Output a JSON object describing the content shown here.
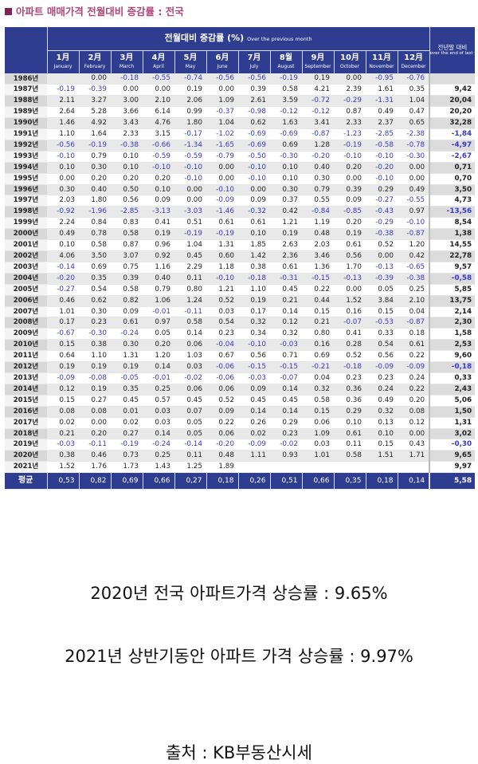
{
  "title": "아파트 매매가격 전월대비 증감률 : 전국",
  "header": {
    "main": "전월대비 증감률 (%)",
    "main_sub": "Over the previous month",
    "last_col_kr": "전년말 대비",
    "last_col_en": "over the end of last year",
    "months": [
      {
        "kr": "1月",
        "en": "January"
      },
      {
        "kr": "2月",
        "en": "February"
      },
      {
        "kr": "3月",
        "en": "March"
      },
      {
        "kr": "4月",
        "en": "April"
      },
      {
        "kr": "5月",
        "en": "May"
      },
      {
        "kr": "6月",
        "en": "June"
      },
      {
        "kr": "7月",
        "en": "July"
      },
      {
        "kr": "8월",
        "en": "August"
      },
      {
        "kr": "9月",
        "en": "September"
      },
      {
        "kr": "10月",
        "en": "October"
      },
      {
        "kr": "11月",
        "en": "November"
      },
      {
        "kr": "12月",
        "en": "December"
      }
    ]
  },
  "rows": [
    {
      "year": "1986년",
      "vals": [
        "",
        "0.00",
        "-0.18",
        "-0.55",
        "-0.74",
        "-0.56",
        "-0.56",
        "-0.19",
        "0.19",
        "0.00",
        "-0.95",
        "-0.76"
      ],
      "last": ""
    },
    {
      "year": "1987년",
      "vals": [
        "-0.19",
        "-0.39",
        "0.00",
        "0.00",
        "0.19",
        "0.00",
        "0.39",
        "0.58",
        "4.21",
        "2.39",
        "1.61",
        "0.35"
      ],
      "last": "9,42"
    },
    {
      "year": "1988년",
      "vals": [
        "2.11",
        "3.27",
        "3.00",
        "2.10",
        "2.06",
        "1.09",
        "2.61",
        "3.59",
        "-0.72",
        "-0.29",
        "-1.31",
        "1.04"
      ],
      "last": "20,04"
    },
    {
      "year": "1989년",
      "vals": [
        "2.64",
        "5.28",
        "3.66",
        "6.14",
        "0.99",
        "-0.37",
        "-0.98",
        "-0.12",
        "-0.12",
        "0.87",
        "0.49",
        "0.47"
      ],
      "last": "20,20"
    },
    {
      "year": "1990년",
      "vals": [
        "1.46",
        "4.92",
        "3.43",
        "4.76",
        "1.80",
        "1.04",
        "0.62",
        "1.63",
        "3.41",
        "2.33",
        "2.37",
        "0.65"
      ],
      "last": "32,28"
    },
    {
      "year": "1991년",
      "vals": [
        "1.10",
        "1.64",
        "2.33",
        "3.15",
        "-0.17",
        "-1.02",
        "-0.69",
        "-0.69",
        "-0.87",
        "-1.23",
        "-2.85",
        "-2.38"
      ],
      "last": "-1,84"
    },
    {
      "year": "1992년",
      "vals": [
        "-0.56",
        "-0.19",
        "-0.38",
        "-0.66",
        "-1.34",
        "-1.65",
        "-0.69",
        "0.69",
        "1.28",
        "-0.19",
        "-0.58",
        "-0.78"
      ],
      "last": "-4,97"
    },
    {
      "year": "1993년",
      "vals": [
        "-0.10",
        "0.79",
        "0.10",
        "-0.59",
        "-0.59",
        "-0.79",
        "-0.50",
        "-0.30",
        "-0.20",
        "-0.10",
        "-0.10",
        "-0.30"
      ],
      "last": "-2,67"
    },
    {
      "year": "1994년",
      "vals": [
        "0.10",
        "0.30",
        "0.10",
        "-0.10",
        "-0.10",
        "0.00",
        "-0.10",
        "0.10",
        "0.40",
        "0.20",
        "-0.20",
        "0.00"
      ],
      "last": "0,71"
    },
    {
      "year": "1995년",
      "vals": [
        "0.00",
        "0.20",
        "0.20",
        "0.20",
        "-0.10",
        "0.00",
        "-0.10",
        "0.10",
        "0.30",
        "0.00",
        "-0.10",
        "0.00"
      ],
      "last": "0,70"
    },
    {
      "year": "1996년",
      "vals": [
        "0.30",
        "0.40",
        "0.50",
        "0.10",
        "0.00",
        "-0.10",
        "0.00",
        "0.30",
        "0.79",
        "0.39",
        "0.29",
        "0.49"
      ],
      "last": "3,50"
    },
    {
      "year": "1997년",
      "vals": [
        "2.03",
        "1.80",
        "0.56",
        "0.09",
        "0.00",
        "-0.09",
        "0.09",
        "0.37",
        "0.55",
        "0.09",
        "-0.27",
        "-0.55"
      ],
      "last": "4,73"
    },
    {
      "year": "1998년",
      "vals": [
        "-0.92",
        "-1.96",
        "-2.85",
        "-3.13",
        "-3.03",
        "-1.46",
        "-0.32",
        "0.42",
        "-0.84",
        "-0.85",
        "-0.43",
        "0.97"
      ],
      "last": "-13,56"
    },
    {
      "year": "1999년",
      "vals": [
        "2.24",
        "0.84",
        "0.83",
        "0.41",
        "0.51",
        "0.61",
        "0.61",
        "1.21",
        "1.19",
        "0.20",
        "-0.29",
        "-0.10"
      ],
      "last": "8,54"
    },
    {
      "year": "2000년",
      "vals": [
        "0.49",
        "0.78",
        "0.58",
        "0.19",
        "-0.19",
        "-0.19",
        "0.10",
        "0.19",
        "0.48",
        "0.19",
        "-0.38",
        "-0.87"
      ],
      "last": "1,38"
    },
    {
      "year": "2001년",
      "vals": [
        "0.10",
        "0.58",
        "0.87",
        "0.96",
        "1.04",
        "1.31",
        "1.85",
        "2.63",
        "2.03",
        "0.61",
        "0.52",
        "1.20"
      ],
      "last": "14,55"
    },
    {
      "year": "2002년",
      "vals": [
        "4.06",
        "3.50",
        "3.07",
        "0.92",
        "0.45",
        "0.60",
        "1.42",
        "2.36",
        "3.46",
        "0.56",
        "0.00",
        "0.42"
      ],
      "last": "22,78"
    },
    {
      "year": "2003년",
      "vals": [
        "-0.14",
        "0.69",
        "0.75",
        "1.16",
        "2.29",
        "1.18",
        "0.38",
        "0.61",
        "1.36",
        "1.70",
        "-0.13",
        "-0.65"
      ],
      "last": "9,57"
    },
    {
      "year": "2004년",
      "vals": [
        "-0.20",
        "0.35",
        "0.39",
        "0.40",
        "0.11",
        "-0.10",
        "-0.18",
        "-0.31",
        "-0.15",
        "-0.13",
        "-0.39",
        "-0.38"
      ],
      "last": "-0,58"
    },
    {
      "year": "2005년",
      "vals": [
        "-0.27",
        "0.54",
        "0.58",
        "0.79",
        "0.80",
        "1.21",
        "1.10",
        "0.45",
        "0.22",
        "0.00",
        "0.05",
        "0.25"
      ],
      "last": "5,85"
    },
    {
      "year": "2006년",
      "vals": [
        "0.46",
        "0.62",
        "0.82",
        "1.06",
        "1.24",
        "0.52",
        "0.19",
        "0.21",
        "0.44",
        "1.52",
        "3.84",
        "2.10"
      ],
      "last": "13,75"
    },
    {
      "year": "2007년",
      "vals": [
        "1.01",
        "0.30",
        "0.09",
        "-0.01",
        "-0.11",
        "0.03",
        "0.17",
        "0.14",
        "0.15",
        "0.16",
        "0.15",
        "0.04"
      ],
      "last": "2,14"
    },
    {
      "year": "2008년",
      "vals": [
        "0.17",
        "0.23",
        "0.61",
        "0.97",
        "0.58",
        "0.54",
        "0.32",
        "0.12",
        "0.21",
        "-0.07",
        "-0.53",
        "-0.87"
      ],
      "last": "2,30"
    },
    {
      "year": "2009년",
      "vals": [
        "-0.67",
        "-0.30",
        "-0.24",
        "0.05",
        "0.14",
        "0.23",
        "0.34",
        "0.32",
        "0.80",
        "0.41",
        "0.33",
        "0.18"
      ],
      "last": "1,58"
    },
    {
      "year": "2010년",
      "vals": [
        "0.15",
        "0.38",
        "0.30",
        "0.20",
        "0.06",
        "-0.04",
        "-0.10",
        "-0.03",
        "0.16",
        "0.28",
        "0.54",
        "0.61"
      ],
      "last": "2,53"
    },
    {
      "year": "2011년",
      "vals": [
        "0.64",
        "1.10",
        "1.31",
        "1.20",
        "1.03",
        "0.67",
        "0.56",
        "0.71",
        "0.69",
        "0.52",
        "0.56",
        "0.22"
      ],
      "last": "9,60"
    },
    {
      "year": "2012년",
      "vals": [
        "0.19",
        "0.19",
        "0.19",
        "0.14",
        "0.03",
        "-0.06",
        "-0.15",
        "-0.15",
        "-0.21",
        "-0.18",
        "-0.09",
        "-0.09"
      ],
      "last": "-0,18"
    },
    {
      "year": "2013년",
      "vals": [
        "-0.09",
        "-0.08",
        "-0.05",
        "-0.01",
        "-0.02",
        "-0.06",
        "-0.03",
        "-0.07",
        "0.04",
        "0.23",
        "0.23",
        "0.24"
      ],
      "last": "0,33"
    },
    {
      "year": "2014년",
      "vals": [
        "0.12",
        "0.19",
        "0.35",
        "0.25",
        "0.06",
        "0.06",
        "0.09",
        "0.14",
        "0.32",
        "0.36",
        "0.24",
        "0.22"
      ],
      "last": "2,43"
    },
    {
      "year": "2015년",
      "vals": [
        "0.15",
        "0.27",
        "0.45",
        "0.57",
        "0.45",
        "0.52",
        "0.45",
        "0.45",
        "0.58",
        "0.36",
        "0.49",
        "0.20"
      ],
      "last": "5,06"
    },
    {
      "year": "2016년",
      "vals": [
        "0.08",
        "0.08",
        "0.01",
        "0.03",
        "0.07",
        "0.09",
        "0.14",
        "0.14",
        "0.15",
        "0.29",
        "0.32",
        "0.08"
      ],
      "last": "1,50"
    },
    {
      "year": "2017년",
      "vals": [
        "0.02",
        "0.00",
        "0.02",
        "0.03",
        "0.05",
        "0.22",
        "0.26",
        "0.29",
        "0.06",
        "0.10",
        "0.13",
        "0.12"
      ],
      "last": "1,31"
    },
    {
      "year": "2018년",
      "vals": [
        "0.21",
        "0.20",
        "0.27",
        "0.14",
        "0.05",
        "0.06",
        "0.02",
        "0.23",
        "1.09",
        "0.61",
        "0.10",
        "0.00"
      ],
      "last": "3,02"
    },
    {
      "year": "2019년",
      "vals": [
        "-0.03",
        "-0.11",
        "-0.19",
        "-0.24",
        "-0.14",
        "-0.20",
        "-0.09",
        "-0.02",
        "0.03",
        "0.11",
        "0.15",
        "0.43"
      ],
      "last": "-0,30"
    },
    {
      "year": "2020년",
      "vals": [
        "0.38",
        "0.46",
        "0.73",
        "0.25",
        "0.11",
        "0.48",
        "1.11",
        "0.93",
        "1.01",
        "0.58",
        "1.51",
        "1.71"
      ],
      "last": "9,65"
    },
    {
      "year": "2021년",
      "vals": [
        "1.52",
        "1.76",
        "1.73",
        "1.43",
        "1.25",
        "1.89",
        "",
        "",
        "",
        "",
        "",
        ""
      ],
      "last": "9,97"
    }
  ],
  "average": {
    "label": "평균",
    "vals": [
      "0,53",
      "0,82",
      "0,69",
      "0,66",
      "0,27",
      "0,18",
      "0,26",
      "0,51",
      "0,66",
      "0,35",
      "0,18",
      "0,14"
    ],
    "last": "5,58"
  },
  "captions": [
    "2020년 전국 아파트가격 상승률 : 9.65%",
    "2021년 상반기동안 아파트 가격 상승률 : 9.97%",
    "출처 : KB부동산시세"
  ],
  "colors": {
    "header_bg": "#2e3d8f",
    "negative": "#3737c8",
    "title": "#b0477a"
  }
}
